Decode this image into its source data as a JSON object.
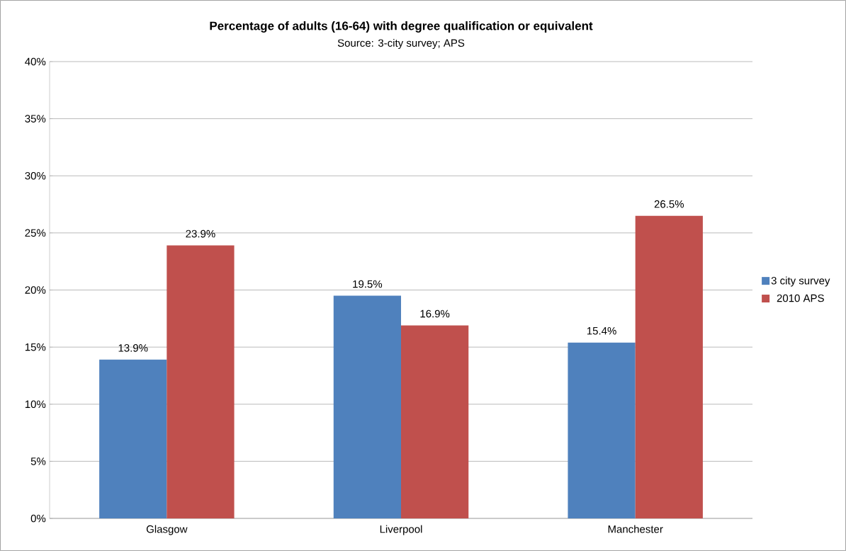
{
  "chart_data": {
    "type": "bar",
    "title": "Percentage of adults (16-64) with degree qualification or equivalent",
    "subtitle": "Source: 3-city survey; APS",
    "categories": [
      "Glasgow",
      "Liverpool",
      "Manchester"
    ],
    "series": [
      {
        "name": "3 city survey",
        "color": "#4f81bd",
        "values": [
          13.9,
          19.5,
          15.4
        ],
        "value_labels": [
          "13.9%",
          "19.5%",
          "15.4%"
        ]
      },
      {
        "name": "2010 APS",
        "color": "#c0504d",
        "values": [
          23.9,
          16.9,
          26.5
        ],
        "value_labels": [
          "23.9%",
          "16.9%",
          "26.5%"
        ]
      }
    ],
    "ylim": [
      0,
      40
    ],
    "yticks": [
      {
        "value": 0,
        "label": "0%"
      },
      {
        "value": 5,
        "label": "5%"
      },
      {
        "value": 10,
        "label": "10%"
      },
      {
        "value": 15,
        "label": "15%"
      },
      {
        "value": 20,
        "label": "20%"
      },
      {
        "value": 25,
        "label": "25%"
      },
      {
        "value": 30,
        "label": "30%"
      },
      {
        "value": 35,
        "label": "35%"
      },
      {
        "value": 40,
        "label": "40%"
      }
    ],
    "grid": "y",
    "legend": "right"
  }
}
